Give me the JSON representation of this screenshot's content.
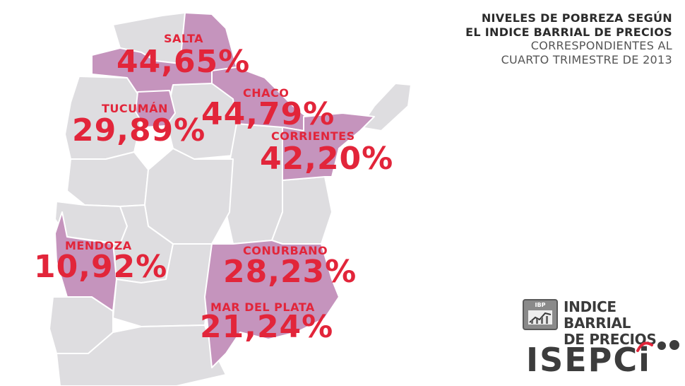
{
  "title": {
    "line1": "NIVELES DE POBREZA SEGÚN",
    "line2": "EL INDICE BARRIAL DE PRECIOS",
    "line3": "CORRESPONDIENTES AL",
    "line4": "CUARTO TRIMESTRE DE 2013"
  },
  "regions": [
    {
      "id": "salta",
      "name": "SALTA",
      "value": "44,65%"
    },
    {
      "id": "chaco",
      "name": "CHACO",
      "value": "44,79%"
    },
    {
      "id": "tucuman",
      "name": "TUCUMÁN",
      "value": "29,89%"
    },
    {
      "id": "corrientes",
      "name": "CORRIENTES",
      "value": "42,20%"
    },
    {
      "id": "mendoza",
      "name": "MENDOZA",
      "value": "10,92%"
    },
    {
      "id": "conurbano",
      "name": "CONURBANO",
      "value": "28,23%"
    },
    {
      "id": "mardelplata",
      "name": "MAR DEL PLATA",
      "value": "21,24%"
    }
  ],
  "logos": {
    "ibp_box": "IBP",
    "ibp_line1": "INDICE BARRIAL",
    "ibp_line2": "DE PRECIOS",
    "isepci": "ISEPCi"
  },
  "colors": {
    "highlight": "#c594bd",
    "province": "#dedde0",
    "value_text": "#e2253a"
  }
}
